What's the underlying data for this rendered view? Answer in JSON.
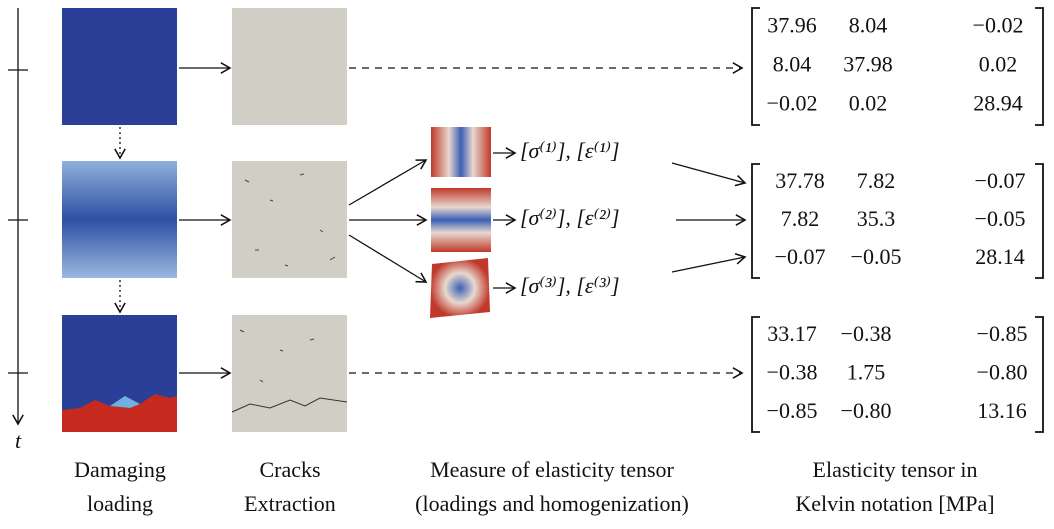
{
  "time_axis": {
    "label": "t"
  },
  "loadings": [
    {
      "label": "[σ⁽¹⁾], [ε⁽¹⁾]"
    },
    {
      "label": "[σ⁽²⁾], [ε⁽²⁾]"
    },
    {
      "label": "[σ⁽³⁾], [ε⁽³⁾]"
    }
  ],
  "matrices": [
    {
      "rows": [
        [
          "37.96",
          "8.04",
          "−0.02"
        ],
        [
          "8.04",
          "37.98",
          "0.02"
        ],
        [
          "−0.02",
          "0.02",
          "28.94"
        ]
      ]
    },
    {
      "rows": [
        [
          "37.78",
          "7.82",
          "−0.07"
        ],
        [
          "7.82",
          "35.3",
          "−0.05"
        ],
        [
          "−0.07",
          "−0.05",
          "28.14"
        ]
      ]
    },
    {
      "rows": [
        [
          "33.17",
          "−0.38",
          "−0.85"
        ],
        [
          "−0.38",
          "1.75",
          "−0.80"
        ],
        [
          "−0.85",
          "−0.80",
          "13.16"
        ]
      ]
    }
  ],
  "captions": [
    {
      "lines": [
        "Damaging",
        "loading"
      ]
    },
    {
      "lines": [
        "Cracks",
        "Extraction"
      ]
    },
    {
      "lines": [
        "Measure of elasticity tensor",
        "(loadings and homogenization)"
      ]
    },
    {
      "lines": [
        "Elasticity tensor in",
        "Kelvin notation [MPa]"
      ]
    }
  ]
}
